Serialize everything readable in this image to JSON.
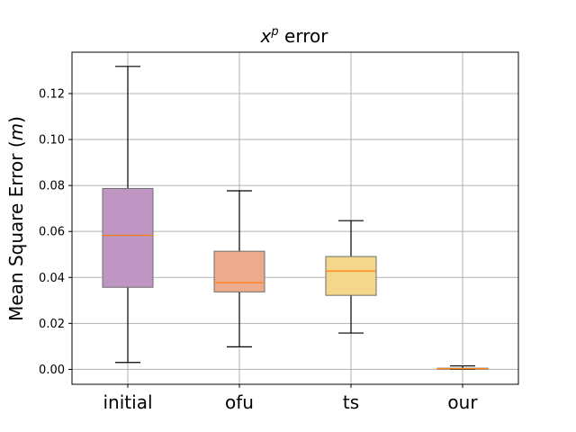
{
  "chart_data": {
    "type": "boxplot",
    "title_base": "x",
    "title_sup": "p",
    "title_rest": " error",
    "ylabel_base": "Mean Square Error (",
    "ylabel_unit": "m",
    "ylabel_end": ")",
    "xlabel": "",
    "ylim": [
      -0.0065,
      0.138
    ],
    "yticks": [
      0.0,
      0.02,
      0.04,
      0.06,
      0.08,
      0.1,
      0.12
    ],
    "ytick_labels": [
      "0.00",
      "0.02",
      "0.04",
      "0.06",
      "0.08",
      "0.10",
      "0.12"
    ],
    "grid": true,
    "categories": [
      "initial",
      "ofu",
      "ts",
      "our"
    ],
    "boxes": [
      {
        "category": "initial",
        "whisker_low": 0.003,
        "q1": 0.0357,
        "median": 0.0583,
        "q3": 0.0787,
        "whisker_high": 0.1318,
        "color": "#bf95c4"
      },
      {
        "category": "ofu",
        "whisker_low": 0.0098,
        "q1": 0.0337,
        "median": 0.0377,
        "q3": 0.0514,
        "whisker_high": 0.0777,
        "color": "#ebab8c"
      },
      {
        "category": "ts",
        "whisker_low": 0.0158,
        "q1": 0.0322,
        "median": 0.0428,
        "q3": 0.0491,
        "whisker_high": 0.0647,
        "color": "#f5d78b"
      },
      {
        "category": "our",
        "whisker_low": 0.0,
        "q1": 0.0001,
        "median": 0.0003,
        "q3": 0.0005,
        "whisker_high": 0.0015,
        "color": "#c9a0a0"
      }
    ],
    "median_color": "#ff7f0e",
    "grid_color": "#b0b0b0"
  }
}
